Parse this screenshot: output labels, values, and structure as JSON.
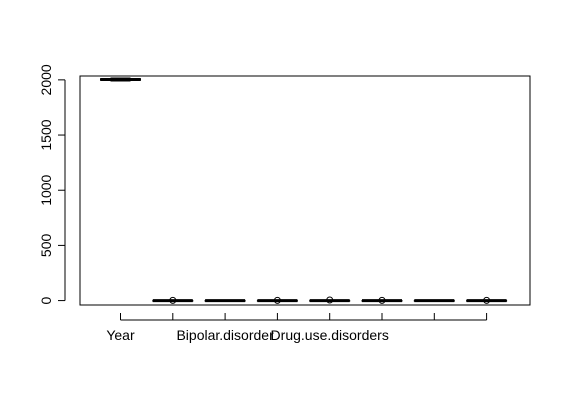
{
  "chart_data": {
    "type": "boxplot",
    "title": "",
    "xlabel": "",
    "ylabel": "",
    "ylim": [
      -40,
      2035
    ],
    "yticks": [
      0,
      500,
      1000,
      1500,
      2000
    ],
    "ytick_labels": [
      "0",
      "500",
      "1000",
      "1500",
      "2000"
    ],
    "grid": false,
    "legend": "none",
    "boxes": [
      {
        "label": "Year",
        "min": 1990,
        "q1": 1997,
        "median": 2003,
        "q3": 2010,
        "max": 2017,
        "outliers": []
      },
      {
        "label": "",
        "min": 0,
        "q1": 0,
        "median": 0,
        "q3": 0,
        "max": 0,
        "outliers": [
          2
        ]
      },
      {
        "label": "Bipolar.disorder",
        "min": 0,
        "q1": 0,
        "median": 0,
        "q3": 0,
        "max": 0,
        "outliers": []
      },
      {
        "label": "",
        "min": 0,
        "q1": 0,
        "median": 0,
        "q3": 0,
        "max": 0,
        "outliers": [
          2
        ]
      },
      {
        "label": "Drug.use.disorders",
        "min": 0,
        "q1": 0,
        "median": 0,
        "q3": 0,
        "max": 0,
        "outliers": [
          5
        ]
      },
      {
        "label": "",
        "min": 0,
        "q1": 0,
        "median": 0,
        "q3": 0,
        "max": 0,
        "outliers": [
          2
        ]
      },
      {
        "label": "",
        "min": 0,
        "q1": 0,
        "median": 0,
        "q3": 0,
        "max": 0,
        "outliers": []
      },
      {
        "label": "",
        "min": 0,
        "q1": 0,
        "median": 0,
        "q3": 0,
        "max": 0,
        "outliers": [
          2
        ]
      }
    ],
    "colors": {
      "box": "#000000",
      "background": "#ffffff"
    }
  }
}
